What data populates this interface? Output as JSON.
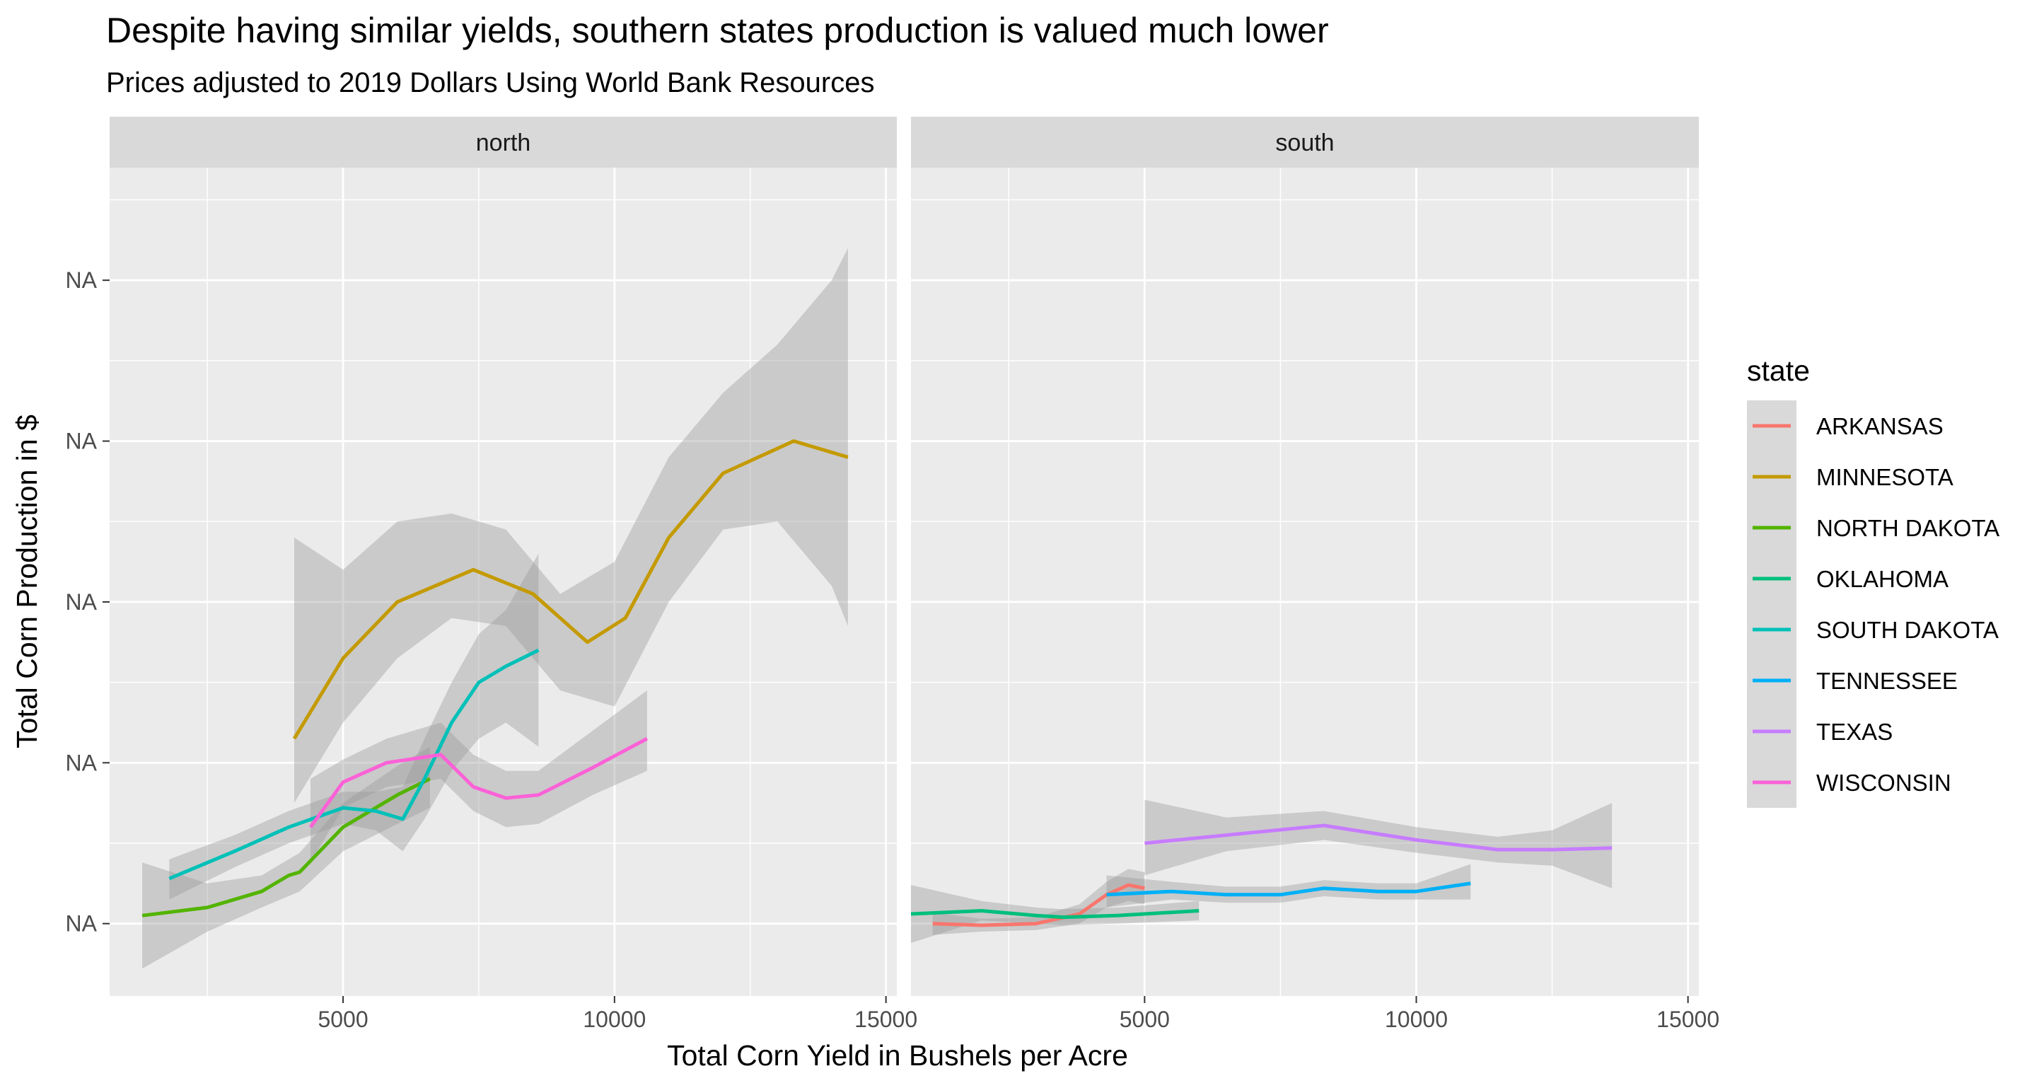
{
  "chart_data": {
    "type": "line",
    "title": "Despite having similar yields, southern states production is valued much lower",
    "subtitle": "Prices adjusted to 2019 Dollars Using World Bank Resources",
    "xlabel": "Total Corn Yield in Bushels per Acre",
    "ylabel": "Total Corn Production in $",
    "xlim": [
      700,
      15200
    ],
    "ylim": [
      0.55,
      5.7
    ],
    "x_ticks": [
      5000,
      10000,
      15000
    ],
    "x_tick_labels": [
      "5000",
      "10000",
      "15000"
    ],
    "y_ticks": [
      1,
      2,
      3,
      4,
      5
    ],
    "y_tick_labels": [
      "NA",
      "NA",
      "NA",
      "NA",
      "NA"
    ],
    "grid": true,
    "legend_title": "state",
    "legend_position": "right",
    "facets": [
      {
        "label": "north",
        "series": [
          {
            "name": "MINNESOTA",
            "color": "#C49A00",
            "points": [
              [
                4100,
                2.15
              ],
              [
                5000,
                2.65
              ],
              [
                6000,
                3.0
              ],
              [
                7400,
                3.2
              ],
              [
                8500,
                3.05
              ],
              [
                9500,
                2.75
              ],
              [
                10200,
                2.9
              ],
              [
                11000,
                3.4
              ],
              [
                12000,
                3.8
              ],
              [
                13300,
                4.0
              ],
              [
                14300,
                3.9
              ]
            ],
            "band": [
              [
                4100,
                1.75,
                3.4
              ],
              [
                5000,
                2.25,
                3.2
              ],
              [
                6000,
                2.65,
                3.5
              ],
              [
                7000,
                2.9,
                3.55
              ],
              [
                8000,
                2.85,
                3.45
              ],
              [
                9000,
                2.45,
                3.05
              ],
              [
                10000,
                2.35,
                3.25
              ],
              [
                11000,
                3.0,
                3.9
              ],
              [
                12000,
                3.45,
                4.3
              ],
              [
                13000,
                3.5,
                4.6
              ],
              [
                14000,
                3.1,
                5.0
              ],
              [
                14300,
                2.85,
                5.2
              ]
            ]
          },
          {
            "name": "NORTH DAKOTA",
            "color": "#53B400",
            "points": [
              [
                1300,
                1.05
              ],
              [
                2500,
                1.1
              ],
              [
                3500,
                1.2
              ],
              [
                4000,
                1.3
              ],
              [
                4200,
                1.32
              ],
              [
                5000,
                1.6
              ],
              [
                6000,
                1.8
              ],
              [
                6600,
                1.9
              ]
            ],
            "band": [
              [
                1300,
                0.72,
                1.38
              ],
              [
                2500,
                0.95,
                1.25
              ],
              [
                3500,
                1.1,
                1.3
              ],
              [
                4200,
                1.2,
                1.44
              ],
              [
                5000,
                1.45,
                1.75
              ],
              [
                6000,
                1.62,
                1.98
              ],
              [
                6600,
                1.72,
                2.1
              ]
            ]
          },
          {
            "name": "SOUTH DAKOTA",
            "color": "#00C0B8",
            "points": [
              [
                1800,
                1.28
              ],
              [
                3000,
                1.45
              ],
              [
                4000,
                1.6
              ],
              [
                5000,
                1.72
              ],
              [
                5600,
                1.7
              ],
              [
                6100,
                1.65
              ],
              [
                6500,
                1.9
              ],
              [
                7000,
                2.25
              ],
              [
                7500,
                2.5
              ],
              [
                8000,
                2.6
              ],
              [
                8600,
                2.7
              ]
            ],
            "band": [
              [
                1800,
                1.15,
                1.4
              ],
              [
                3000,
                1.35,
                1.55
              ],
              [
                4000,
                1.5,
                1.7
              ],
              [
                5000,
                1.62,
                1.82
              ],
              [
                5600,
                1.58,
                1.82
              ],
              [
                6100,
                1.45,
                1.85
              ],
              [
                6500,
                1.65,
                2.15
              ],
              [
                7000,
                1.95,
                2.5
              ],
              [
                7500,
                2.15,
                2.8
              ],
              [
                8000,
                2.25,
                2.95
              ],
              [
                8600,
                2.1,
                3.3
              ]
            ]
          },
          {
            "name": "WISCONSIN",
            "color": "#FB61D7",
            "points": [
              [
                4400,
                1.6
              ],
              [
                5000,
                1.88
              ],
              [
                5800,
                2.0
              ],
              [
                6800,
                2.05
              ],
              [
                7400,
                1.85
              ],
              [
                8000,
                1.78
              ],
              [
                8600,
                1.8
              ],
              [
                9600,
                1.97
              ],
              [
                10600,
                2.15
              ]
            ],
            "band": [
              [
                4400,
                1.38,
                1.9
              ],
              [
                5000,
                1.72,
                2.02
              ],
              [
                5800,
                1.85,
                2.15
              ],
              [
                6800,
                1.9,
                2.25
              ],
              [
                7400,
                1.7,
                2.05
              ],
              [
                8000,
                1.6,
                1.95
              ],
              [
                8600,
                1.62,
                1.95
              ],
              [
                9600,
                1.8,
                2.2
              ],
              [
                10600,
                1.95,
                2.45
              ]
            ]
          }
        ]
      },
      {
        "label": "south",
        "series": [
          {
            "name": "ARKANSAS",
            "color": "#F8766D",
            "points": [
              [
                1100,
                1.0
              ],
              [
                2000,
                0.99
              ],
              [
                3000,
                1.0
              ],
              [
                3800,
                1.06
              ],
              [
                4300,
                1.18
              ],
              [
                4700,
                1.24
              ],
              [
                5000,
                1.22
              ]
            ],
            "band": [
              [
                1100,
                0.93,
                1.07
              ],
              [
                2000,
                0.95,
                1.03
              ],
              [
                3000,
                0.96,
                1.04
              ],
              [
                3800,
                1.0,
                1.12
              ],
              [
                4300,
                1.1,
                1.26
              ],
              [
                4700,
                1.14,
                1.34
              ],
              [
                5000,
                1.12,
                1.32
              ]
            ]
          },
          {
            "name": "OKLAHOMA",
            "color": "#00BF7D",
            "points": [
              [
                700,
                1.06
              ],
              [
                2000,
                1.08
              ],
              [
                3000,
                1.05
              ],
              [
                3500,
                1.04
              ],
              [
                4500,
                1.05
              ],
              [
                6000,
                1.08
              ]
            ],
            "band": [
              [
                700,
                0.88,
                1.24
              ],
              [
                2000,
                1.02,
                1.14
              ],
              [
                3000,
                1.0,
                1.1
              ],
              [
                3500,
                0.99,
                1.09
              ],
              [
                4500,
                1.0,
                1.1
              ],
              [
                6000,
                1.02,
                1.14
              ]
            ]
          },
          {
            "name": "TENNESSEE",
            "color": "#00B0F6",
            "points": [
              [
                4300,
                1.18
              ],
              [
                5500,
                1.2
              ],
              [
                6500,
                1.18
              ],
              [
                7500,
                1.18
              ],
              [
                8300,
                1.22
              ],
              [
                9300,
                1.2
              ],
              [
                10000,
                1.2
              ],
              [
                11000,
                1.25
              ]
            ],
            "band": [
              [
                4300,
                1.1,
                1.3
              ],
              [
                5500,
                1.15,
                1.26
              ],
              [
                6500,
                1.13,
                1.23
              ],
              [
                7500,
                1.13,
                1.23
              ],
              [
                8300,
                1.17,
                1.27
              ],
              [
                9300,
                1.15,
                1.25
              ],
              [
                10000,
                1.15,
                1.25
              ],
              [
                11000,
                1.15,
                1.37
              ]
            ]
          },
          {
            "name": "TEXAS",
            "color": "#C77CFF",
            "points": [
              [
                5000,
                1.5
              ],
              [
                6500,
                1.55
              ],
              [
                8300,
                1.61
              ],
              [
                10000,
                1.52
              ],
              [
                11500,
                1.46
              ],
              [
                12500,
                1.46
              ],
              [
                13600,
                1.47
              ]
            ],
            "band": [
              [
                5000,
                1.3,
                1.77
              ],
              [
                6500,
                1.45,
                1.66
              ],
              [
                8300,
                1.52,
                1.7
              ],
              [
                10000,
                1.44,
                1.6
              ],
              [
                11500,
                1.38,
                1.54
              ],
              [
                12500,
                1.36,
                1.58
              ],
              [
                13600,
                1.22,
                1.75
              ]
            ]
          }
        ]
      }
    ],
    "legend": [
      "ARKANSAS",
      "MINNESOTA",
      "NORTH DAKOTA",
      "OKLAHOMA",
      "SOUTH DAKOTA",
      "TENNESSEE",
      "TEXAS",
      "WISCONSIN"
    ],
    "legend_colors": [
      "#F8766D",
      "#C49A00",
      "#53B400",
      "#00BF7D",
      "#00C0B8",
      "#00B0F6",
      "#C77CFF",
      "#FB61D7"
    ],
    "band_color": "#999999",
    "panel_background": "#EBEBEB",
    "strip_background": "#D9D9D9"
  }
}
